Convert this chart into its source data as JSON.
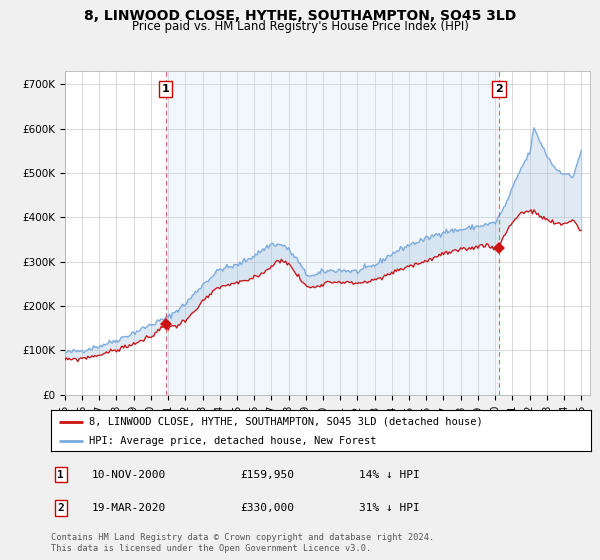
{
  "title": "8, LINWOOD CLOSE, HYTHE, SOUTHAMPTON, SO45 3LD",
  "subtitle": "Price paid vs. HM Land Registry's House Price Index (HPI)",
  "title_fontsize": 10,
  "subtitle_fontsize": 8.5,
  "background_color": "#f0f0f0",
  "plot_bg_color": "#ffffff",
  "ylabel_ticks": [
    "£0",
    "£100K",
    "£200K",
    "£300K",
    "£400K",
    "£500K",
    "£600K",
    "£700K"
  ],
  "ytick_values": [
    0,
    100000,
    200000,
    300000,
    400000,
    500000,
    600000,
    700000
  ],
  "ylim": [
    0,
    730000
  ],
  "xlim_start": 1995.0,
  "xlim_end": 2025.5,
  "x_years": [
    1995,
    1996,
    1997,
    1998,
    1999,
    2000,
    2001,
    2002,
    2003,
    2004,
    2005,
    2006,
    2007,
    2008,
    2009,
    2010,
    2011,
    2012,
    2013,
    2014,
    2015,
    2016,
    2017,
    2018,
    2019,
    2020,
    2021,
    2022,
    2023,
    2024,
    2025
  ],
  "legend_label_red": "8, LINWOOD CLOSE, HYTHE, SOUTHAMPTON, SO45 3LD (detached house)",
  "legend_label_blue": "HPI: Average price, detached house, New Forest",
  "red_color": "#cc1111",
  "blue_color": "#7aaadd",
  "fill_color": "#ddeeff",
  "marker1_x": 2000.87,
  "marker1_y": 159950,
  "marker1_label": "1",
  "marker1_date": "10-NOV-2000",
  "marker1_price": "£159,950",
  "marker1_hpi": "14% ↓ HPI",
  "marker2_x": 2020.22,
  "marker2_y": 330000,
  "marker2_label": "2",
  "marker2_date": "19-MAR-2020",
  "marker2_price": "£330,000",
  "marker2_hpi": "31% ↓ HPI",
  "vline_color": "#dd4444",
  "footer_text": "Contains HM Land Registry data © Crown copyright and database right 2024.\nThis data is licensed under the Open Government Licence v3.0."
}
